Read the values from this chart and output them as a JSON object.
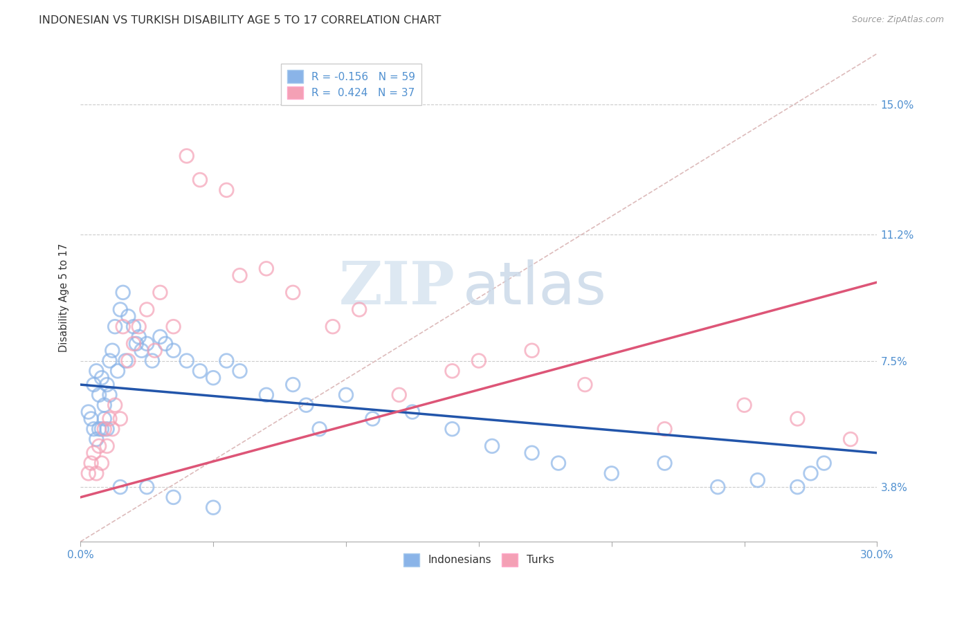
{
  "title": "INDONESIAN VS TURKISH DISABILITY AGE 5 TO 17 CORRELATION CHART",
  "source": "Source: ZipAtlas.com",
  "ylabel": "Disability Age 5 to 17",
  "ylabel_ticks": [
    "3.8%",
    "7.5%",
    "11.2%",
    "15.0%"
  ],
  "ylabel_tick_vals": [
    3.8,
    7.5,
    11.2,
    15.0
  ],
  "xlim": [
    0.0,
    30.0
  ],
  "ylim": [
    2.2,
    16.5
  ],
  "legend_blue_label": "R = -0.156   N = 59",
  "legend_pink_label": "R =  0.424   N = 37",
  "indonesian_color": "#8ab4e8",
  "turkish_color": "#f4a0b5",
  "blue_line_color": "#2255aa",
  "pink_line_color": "#dd5577",
  "diagonal_color": "#ddbbbb",
  "background_color": "#ffffff",
  "grid_color": "#cccccc",
  "indonesian_x": [
    0.3,
    0.4,
    0.5,
    0.5,
    0.6,
    0.6,
    0.7,
    0.7,
    0.8,
    0.8,
    0.9,
    0.9,
    1.0,
    1.0,
    1.1,
    1.1,
    1.2,
    1.3,
    1.4,
    1.5,
    1.6,
    1.7,
    1.8,
    2.0,
    2.1,
    2.2,
    2.3,
    2.5,
    2.7,
    3.0,
    3.2,
    3.5,
    4.0,
    4.5,
    5.0,
    5.5,
    6.0,
    7.0,
    8.0,
    8.5,
    9.0,
    10.0,
    11.0,
    12.5,
    14.0,
    15.5,
    17.0,
    18.0,
    20.0,
    22.0,
    24.0,
    25.5,
    27.0,
    27.5,
    28.0,
    1.5,
    2.5,
    3.5,
    5.0
  ],
  "indonesian_y": [
    6.0,
    5.8,
    5.5,
    6.8,
    5.2,
    7.2,
    5.5,
    6.5,
    5.5,
    7.0,
    5.8,
    6.2,
    5.5,
    6.8,
    6.5,
    7.5,
    7.8,
    8.5,
    7.2,
    9.0,
    9.5,
    7.5,
    8.8,
    8.5,
    8.0,
    8.2,
    7.8,
    8.0,
    7.5,
    8.2,
    8.0,
    7.8,
    7.5,
    7.2,
    7.0,
    7.5,
    7.2,
    6.5,
    6.8,
    6.2,
    5.5,
    6.5,
    5.8,
    6.0,
    5.5,
    5.0,
    4.8,
    4.5,
    4.2,
    4.5,
    3.8,
    4.0,
    3.8,
    4.2,
    4.5,
    3.8,
    3.8,
    3.5,
    3.2
  ],
  "turkish_x": [
    0.3,
    0.4,
    0.5,
    0.6,
    0.7,
    0.8,
    0.9,
    1.0,
    1.1,
    1.2,
    1.3,
    1.5,
    1.6,
    1.8,
    2.0,
    2.2,
    2.5,
    2.8,
    3.0,
    3.5,
    4.0,
    4.5,
    5.5,
    6.0,
    7.0,
    8.0,
    9.5,
    10.5,
    12.0,
    14.0,
    15.0,
    17.0,
    19.0,
    22.0,
    25.0,
    27.0,
    29.0
  ],
  "turkish_y": [
    4.2,
    4.5,
    4.8,
    4.2,
    5.0,
    4.5,
    5.5,
    5.0,
    5.8,
    5.5,
    6.2,
    5.8,
    8.5,
    7.5,
    8.0,
    8.5,
    9.0,
    7.8,
    9.5,
    8.5,
    13.5,
    12.8,
    12.5,
    10.0,
    10.2,
    9.5,
    8.5,
    9.0,
    6.5,
    7.2,
    7.5,
    7.8,
    6.8,
    5.5,
    6.2,
    5.8,
    5.2
  ],
  "watermark_zip": "ZIP",
  "watermark_atlas": "atlas"
}
